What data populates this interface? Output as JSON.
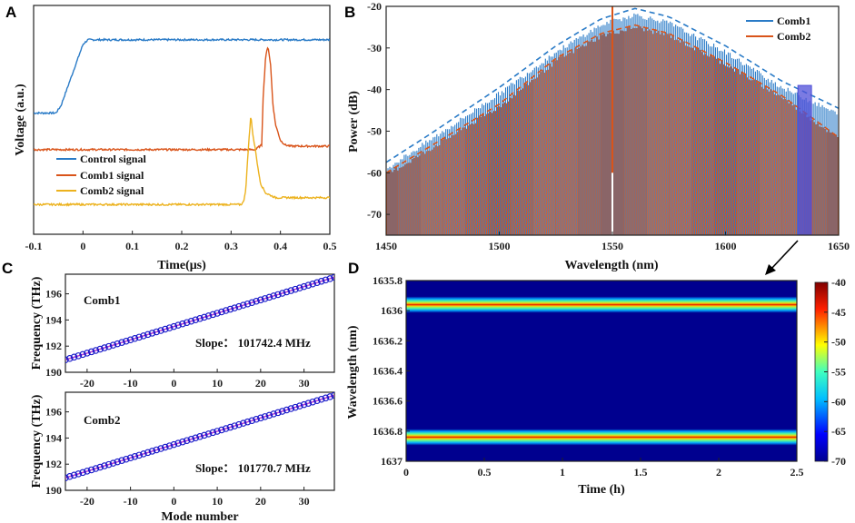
{
  "colors": {
    "blue": "#2a7bc7",
    "orange": "#d9541a",
    "yellow": "#ecb21e",
    "marker": "#1515c8",
    "fitline": "#c23ad0",
    "heat_bg": "#00008f",
    "band_select": "#4f4fd8"
  },
  "chart_data": [
    {
      "panel": "A",
      "type": "line",
      "xlabel": "Time(μs)",
      "ylabel": "Voltage (a.u.)",
      "xlim": [
        -0.1,
        0.5
      ],
      "x_ticks": [
        "-0.1",
        "0",
        "0.1",
        "0.2",
        "0.3",
        "0.4",
        "0.5"
      ],
      "x_tick_values": [
        -0.1,
        0,
        0.1,
        0.2,
        0.3,
        0.4,
        0.5
      ],
      "ylim": [
        0,
        1
      ],
      "legend": "bottom-left",
      "series": [
        {
          "name": "Control signal",
          "color": "blue",
          "x": [
            -0.1,
            -0.055,
            -0.045,
            0.0,
            0.01,
            0.5
          ],
          "y": [
            0.53,
            0.53,
            0.56,
            0.83,
            0.85,
            0.85
          ]
        },
        {
          "name": "Comb1 signal",
          "color": "orange",
          "x": [
            -0.1,
            0.35,
            0.355,
            0.362,
            0.365,
            0.37,
            0.375,
            0.38,
            0.385,
            0.39,
            0.4,
            0.41,
            0.42,
            0.5
          ],
          "y": [
            0.37,
            0.37,
            0.38,
            0.39,
            0.6,
            0.78,
            0.82,
            0.74,
            0.56,
            0.48,
            0.41,
            0.39,
            0.385,
            0.385
          ]
        },
        {
          "name": "Comb2 signal",
          "color": "yellow",
          "x": [
            -0.1,
            0.32,
            0.325,
            0.33,
            0.335,
            0.34,
            0.345,
            0.35,
            0.355,
            0.36,
            0.37,
            0.39,
            0.5
          ],
          "y": [
            0.13,
            0.13,
            0.14,
            0.2,
            0.38,
            0.52,
            0.42,
            0.36,
            0.28,
            0.22,
            0.18,
            0.16,
            0.16
          ]
        }
      ]
    },
    {
      "panel": "B",
      "type": "line",
      "xlabel": "Wavelength (nm)",
      "ylabel": "Power (dB)",
      "xlim": [
        1450,
        1650
      ],
      "x_ticks": [
        "1450",
        "1500",
        "1550",
        "1600",
        "1650"
      ],
      "x_tick_values": [
        1450,
        1500,
        1550,
        1600,
        1650
      ],
      "ylim": [
        -75,
        -20
      ],
      "y_ticks": [
        "-20",
        "-30",
        "-40",
        "-50",
        "-60",
        "-70"
      ],
      "y_tick_values": [
        -20,
        -30,
        -40,
        -50,
        -60,
        -70
      ],
      "legend": "top-right",
      "series": [
        {
          "name": "Comb1",
          "color": "blue",
          "envelope_x": [
            1450,
            1470,
            1500,
            1525,
            1545,
            1560,
            1575,
            1600,
            1625,
            1650
          ],
          "envelope_y": [
            -59,
            -52,
            -41,
            -31,
            -24.5,
            -22,
            -24,
            -31,
            -39.5,
            -46
          ]
        },
        {
          "name": "Comb2",
          "color": "orange",
          "envelope_x": [
            1450,
            1470,
            1500,
            1525,
            1545,
            1560,
            1575,
            1600,
            1625,
            1650
          ],
          "envelope_y": [
            -60.5,
            -54,
            -44,
            -33,
            -27,
            -25,
            -27,
            -34,
            -42,
            -52
          ]
        }
      ],
      "pump_line_x": 1550,
      "selected_band_x": [
        1632,
        1638
      ]
    },
    {
      "panel": "C-top",
      "type": "scatter",
      "annotation_label": "Comb1",
      "slope_label": "Slope： 101742.4 MHz",
      "xlim": [
        -25,
        37
      ],
      "x_ticks": [
        "-20",
        "-10",
        "0",
        "10",
        "20",
        "30"
      ],
      "x_tick_values": [
        -20,
        -10,
        0,
        10,
        20,
        30
      ],
      "ylim": [
        190,
        197.5
      ],
      "y_ticks": [
        "190",
        "192",
        "194",
        "196"
      ],
      "y_tick_values": [
        190,
        192,
        194,
        196
      ],
      "ylabel": "Frequency (THz)",
      "mode_min": -25,
      "mode_max": 37,
      "freq_at_zero": 193.5,
      "slope_thz": 0.1017424
    },
    {
      "panel": "C-bottom",
      "type": "scatter",
      "annotation_label": "Comb2",
      "slope_label": "Slope： 101770.7 MHz",
      "xlabel": "Mode number",
      "xlim": [
        -25,
        37
      ],
      "x_ticks": [
        "-20",
        "-10",
        "0",
        "10",
        "20",
        "30"
      ],
      "x_tick_values": [
        -20,
        -10,
        0,
        10,
        20,
        30
      ],
      "ylim": [
        190,
        197.5
      ],
      "y_ticks": [
        "190",
        "192",
        "194",
        "196"
      ],
      "y_tick_values": [
        190,
        192,
        194,
        196
      ],
      "ylabel": "Frequency (THz)",
      "mode_min": -25,
      "mode_max": 37,
      "freq_at_zero": 193.5,
      "slope_thz": 0.1017707
    },
    {
      "panel": "D",
      "type": "heatmap",
      "xlabel": "Time (h)",
      "ylabel": "Wavelength (nm)",
      "xlim": [
        0,
        2.5
      ],
      "x_ticks": [
        "0",
        "0.5",
        "1",
        "1.5",
        "2",
        "2.5"
      ],
      "x_tick_values": [
        0,
        0.5,
        1,
        1.5,
        2,
        2.5
      ],
      "ylim": [
        1635.8,
        1637.0
      ],
      "y_ticks": [
        "1635.8",
        "1636",
        "1636.2",
        "1636.4",
        "1636.6",
        "1636.8",
        "1637"
      ],
      "y_tick_values": [
        1635.8,
        1636.0,
        1636.2,
        1636.4,
        1636.6,
        1636.8,
        1637.0
      ],
      "bands_nm": [
        1635.96,
        1636.84
      ],
      "colorbar_ticks": [
        "-40",
        "-45",
        "-50",
        "-55",
        "-60",
        "-65",
        "-70"
      ],
      "colorbar_range": [
        -70,
        -40
      ]
    }
  ],
  "panel_letters": [
    "A",
    "B",
    "C",
    "D"
  ]
}
